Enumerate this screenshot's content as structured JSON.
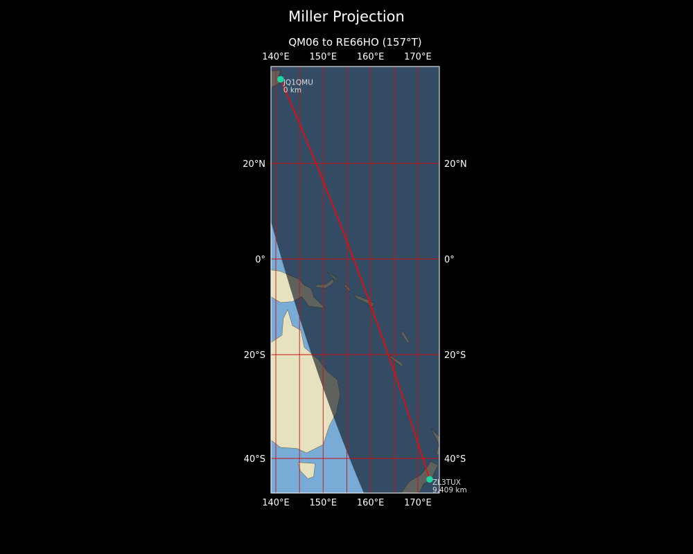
{
  "title": "Miller Projection",
  "subtitle": "QM06 to RE66HO (157°T)",
  "map": {
    "projection": "Miller",
    "extent": {
      "lon": [
        139,
        174.5
      ],
      "lat": [
        -46,
        36.5
      ]
    },
    "lon_ticks": [
      {
        "value": 140,
        "label": "140°E"
      },
      {
        "value": 150,
        "label": "150°E"
      },
      {
        "value": 160,
        "label": "160°E"
      },
      {
        "value": 170,
        "label": "170°E"
      }
    ],
    "lat_ticks": [
      {
        "value": 20,
        "label": "20°N"
      },
      {
        "value": 0,
        "label": "0°"
      },
      {
        "value": -20,
        "label": "20°S"
      },
      {
        "value": -40,
        "label": "40°S"
      }
    ],
    "grid_lons": [
      140,
      145,
      150,
      155,
      160,
      165,
      170
    ],
    "grid_lats": [
      20,
      0,
      -20,
      -40
    ],
    "grid_color": "#cc1111",
    "route_color": "#ff0000",
    "station_color": "#1ed6a0",
    "night_shading": true,
    "stations": [
      {
        "call": "JQ1QMU",
        "distance": "0 km",
        "lat": 36.4,
        "lon": 141.0
      },
      {
        "call": "ZL3TUX",
        "distance": "9,409 km",
        "lat": -43.7,
        "lon": 172.5
      }
    ]
  }
}
